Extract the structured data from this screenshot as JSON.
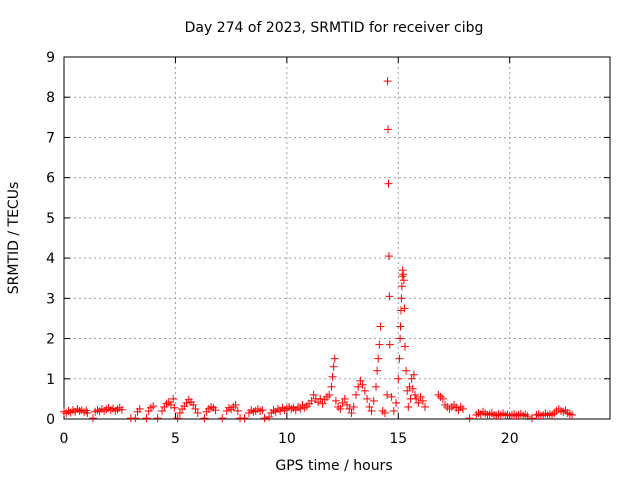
{
  "chart_data": {
    "type": "scatter",
    "title": "Day 274 of 2023, SRMTID for receiver cibg",
    "xlabel": "GPS time / hours",
    "ylabel": "SRMTID / TECUs",
    "xlim": [
      0,
      24.5
    ],
    "ylim": [
      0,
      9
    ],
    "xticks": [
      0,
      5,
      10,
      15,
      20
    ],
    "yticks": [
      0,
      1,
      2,
      3,
      4,
      5,
      6,
      7,
      8,
      9
    ],
    "grid": true,
    "marker": "+",
    "series": [
      {
        "name": "SRMTID",
        "color": "#ff0000",
        "points": [
          [
            0.0,
            0.18
          ],
          [
            0.1,
            0.14
          ],
          [
            0.2,
            0.2
          ],
          [
            0.3,
            0.16
          ],
          [
            0.4,
            0.22
          ],
          [
            0.5,
            0.18
          ],
          [
            0.6,
            0.25
          ],
          [
            0.7,
            0.2
          ],
          [
            0.8,
            0.22
          ],
          [
            0.9,
            0.17
          ],
          [
            1.0,
            0.21
          ],
          [
            1.05,
            0.15
          ],
          [
            1.3,
            0.02
          ],
          [
            1.4,
            0.18
          ],
          [
            1.5,
            0.22
          ],
          [
            1.6,
            0.19
          ],
          [
            1.7,
            0.25
          ],
          [
            1.8,
            0.2
          ],
          [
            1.9,
            0.24
          ],
          [
            2.0,
            0.28
          ],
          [
            2.1,
            0.22
          ],
          [
            2.2,
            0.26
          ],
          [
            2.3,
            0.2
          ],
          [
            2.4,
            0.24
          ],
          [
            2.5,
            0.28
          ],
          [
            2.6,
            0.23
          ],
          [
            3.0,
            0.02
          ],
          [
            3.2,
            0.02
          ],
          [
            3.3,
            0.18
          ],
          [
            3.4,
            0.25
          ],
          [
            3.7,
            0.02
          ],
          [
            3.8,
            0.2
          ],
          [
            3.9,
            0.28
          ],
          [
            4.0,
            0.32
          ],
          [
            4.2,
            0.02
          ],
          [
            4.4,
            0.2
          ],
          [
            4.5,
            0.3
          ],
          [
            4.6,
            0.38
          ],
          [
            4.7,
            0.42
          ],
          [
            4.8,
            0.35
          ],
          [
            4.9,
            0.5
          ],
          [
            4.95,
            0.28
          ],
          [
            5.1,
            0.02
          ],
          [
            5.2,
            0.15
          ],
          [
            5.3,
            0.25
          ],
          [
            5.4,
            0.32
          ],
          [
            5.5,
            0.4
          ],
          [
            5.6,
            0.48
          ],
          [
            5.7,
            0.42
          ],
          [
            5.8,
            0.35
          ],
          [
            5.9,
            0.25
          ],
          [
            6.0,
            0.15
          ],
          [
            6.3,
            0.02
          ],
          [
            6.4,
            0.18
          ],
          [
            6.5,
            0.25
          ],
          [
            6.6,
            0.3
          ],
          [
            6.7,
            0.28
          ],
          [
            6.8,
            0.22
          ],
          [
            7.1,
            0.02
          ],
          [
            7.3,
            0.2
          ],
          [
            7.4,
            0.28
          ],
          [
            7.5,
            0.24
          ],
          [
            7.6,
            0.3
          ],
          [
            7.7,
            0.35
          ],
          [
            7.8,
            0.2
          ],
          [
            7.9,
            0.02
          ],
          [
            8.1,
            0.02
          ],
          [
            8.3,
            0.15
          ],
          [
            8.4,
            0.22
          ],
          [
            8.5,
            0.18
          ],
          [
            8.6,
            0.2
          ],
          [
            8.7,
            0.25
          ],
          [
            8.8,
            0.2
          ],
          [
            8.9,
            0.22
          ],
          [
            9.0,
            0.02
          ],
          [
            9.2,
            0.05
          ],
          [
            9.3,
            0.15
          ],
          [
            9.4,
            0.22
          ],
          [
            9.5,
            0.18
          ],
          [
            9.6,
            0.25
          ],
          [
            9.7,
            0.2
          ],
          [
            9.8,
            0.28
          ],
          [
            9.9,
            0.22
          ],
          [
            10.0,
            0.26
          ],
          [
            10.1,
            0.3
          ],
          [
            10.2,
            0.25
          ],
          [
            10.3,
            0.28
          ],
          [
            10.4,
            0.22
          ],
          [
            10.5,
            0.3
          ],
          [
            10.6,
            0.25
          ],
          [
            10.7,
            0.35
          ],
          [
            10.8,
            0.28
          ],
          [
            10.9,
            0.32
          ],
          [
            11.0,
            0.38
          ],
          [
            11.1,
            0.45
          ],
          [
            11.2,
            0.6
          ],
          [
            11.3,
            0.5
          ],
          [
            11.4,
            0.42
          ],
          [
            11.5,
            0.5
          ],
          [
            11.6,
            0.38
          ],
          [
            11.7,
            0.48
          ],
          [
            11.8,
            0.55
          ],
          [
            11.9,
            0.6
          ],
          [
            12.0,
            0.8
          ],
          [
            12.05,
            1.05
          ],
          [
            12.1,
            1.3
          ],
          [
            12.15,
            1.5
          ],
          [
            12.2,
            0.45
          ],
          [
            12.3,
            0.3
          ],
          [
            12.4,
            0.25
          ],
          [
            12.5,
            0.4
          ],
          [
            12.6,
            0.5
          ],
          [
            12.7,
            0.35
          ],
          [
            12.8,
            0.25
          ],
          [
            12.9,
            0.15
          ],
          [
            13.0,
            0.3
          ],
          [
            13.1,
            0.6
          ],
          [
            13.2,
            0.8
          ],
          [
            13.3,
            0.95
          ],
          [
            13.4,
            0.85
          ],
          [
            13.5,
            0.7
          ],
          [
            13.6,
            0.5
          ],
          [
            13.7,
            0.3
          ],
          [
            13.8,
            0.2
          ],
          [
            13.9,
            0.45
          ],
          [
            14.0,
            0.8
          ],
          [
            14.05,
            1.2
          ],
          [
            14.1,
            1.5
          ],
          [
            14.15,
            1.85
          ],
          [
            14.2,
            2.3
          ],
          [
            14.3,
            0.2
          ],
          [
            14.4,
            0.15
          ],
          [
            14.5,
            0.6
          ],
          [
            14.52,
            8.4
          ],
          [
            14.54,
            7.2
          ],
          [
            14.56,
            5.85
          ],
          [
            14.58,
            4.05
          ],
          [
            14.6,
            3.05
          ],
          [
            14.62,
            1.85
          ],
          [
            14.7,
            0.55
          ],
          [
            14.8,
            0.2
          ],
          [
            14.9,
            0.4
          ],
          [
            15.0,
            1.0
          ],
          [
            15.05,
            1.5
          ],
          [
            15.08,
            2.0
          ],
          [
            15.1,
            2.3
          ],
          [
            15.12,
            2.7
          ],
          [
            15.14,
            3.0
          ],
          [
            15.16,
            3.3
          ],
          [
            15.18,
            3.55
          ],
          [
            15.2,
            3.7
          ],
          [
            15.22,
            3.6
          ],
          [
            15.25,
            3.45
          ],
          [
            15.28,
            2.75
          ],
          [
            15.3,
            1.8
          ],
          [
            15.35,
            1.2
          ],
          [
            15.4,
            0.7
          ],
          [
            15.45,
            0.3
          ],
          [
            15.5,
            0.8
          ],
          [
            15.55,
            0.5
          ],
          [
            15.6,
            1.0
          ],
          [
            15.65,
            0.75
          ],
          [
            15.7,
            1.1
          ],
          [
            15.75,
            0.6
          ],
          [
            15.8,
            0.5
          ],
          [
            15.9,
            0.4
          ],
          [
            16.0,
            0.55
          ],
          [
            16.1,
            0.45
          ],
          [
            16.2,
            0.3
          ],
          [
            16.8,
            0.6
          ],
          [
            16.9,
            0.55
          ],
          [
            17.0,
            0.5
          ],
          [
            17.1,
            0.35
          ],
          [
            17.2,
            0.3
          ],
          [
            17.3,
            0.25
          ],
          [
            17.4,
            0.3
          ],
          [
            17.5,
            0.35
          ],
          [
            17.6,
            0.28
          ],
          [
            17.7,
            0.22
          ],
          [
            17.8,
            0.3
          ],
          [
            17.9,
            0.25
          ],
          [
            18.2,
            0.02
          ],
          [
            18.5,
            0.1
          ],
          [
            18.6,
            0.15
          ],
          [
            18.7,
            0.12
          ],
          [
            18.8,
            0.18
          ],
          [
            18.9,
            0.14
          ],
          [
            19.0,
            0.1
          ],
          [
            19.1,
            0.12
          ],
          [
            19.2,
            0.15
          ],
          [
            19.3,
            0.1
          ],
          [
            19.4,
            0.08
          ],
          [
            19.5,
            0.12
          ],
          [
            19.6,
            0.1
          ],
          [
            19.7,
            0.14
          ],
          [
            19.8,
            0.09
          ],
          [
            19.9,
            0.11
          ],
          [
            20.0,
            0.08
          ],
          [
            20.1,
            0.1
          ],
          [
            20.2,
            0.12
          ],
          [
            20.3,
            0.08
          ],
          [
            20.4,
            0.1
          ],
          [
            20.5,
            0.13
          ],
          [
            20.6,
            0.09
          ],
          [
            20.7,
            0.11
          ],
          [
            20.8,
            0.07
          ],
          [
            21.0,
            0.02
          ],
          [
            21.2,
            0.1
          ],
          [
            21.3,
            0.12
          ],
          [
            21.4,
            0.08
          ],
          [
            21.5,
            0.1
          ],
          [
            21.6,
            0.14
          ],
          [
            21.7,
            0.09
          ],
          [
            21.8,
            0.12
          ],
          [
            21.9,
            0.1
          ],
          [
            22.0,
            0.15
          ],
          [
            22.1,
            0.2
          ],
          [
            22.2,
            0.25
          ],
          [
            22.3,
            0.2
          ],
          [
            22.4,
            0.18
          ],
          [
            22.5,
            0.22
          ],
          [
            22.6,
            0.15
          ],
          [
            22.7,
            0.12
          ],
          [
            22.8,
            0.1
          ]
        ]
      }
    ]
  }
}
